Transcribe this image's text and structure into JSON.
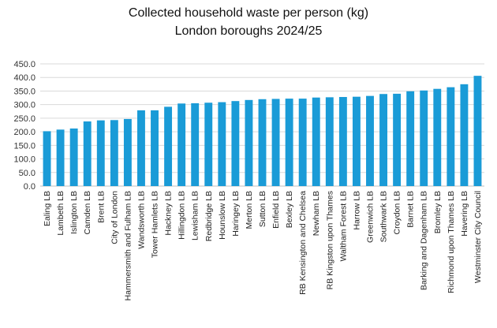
{
  "chart_data": {
    "type": "bar",
    "title": "Collected household waste per person (kg)",
    "subtitle": "London boroughs 2024/25",
    "xlabel": "",
    "ylabel": "",
    "ylim": [
      0,
      450
    ],
    "yticks": [
      "0.0",
      "50.0",
      "100.0",
      "150.0",
      "200.0",
      "250.0",
      "300.0",
      "350.0",
      "400.0",
      "450.0"
    ],
    "grid": true,
    "bar_color": "#1a9bd7",
    "categories": [
      "Ealing LB",
      "Lambeth LB",
      "Islington LB",
      "Camden LB",
      "Brent LB",
      "City of London",
      "Hammersmith and Fulham LB",
      "Wandsworth LB",
      "Tower Hamlets LB",
      "Hackney LB",
      "Hillingdon LB",
      "Lewisham LB",
      "Redbridge LB",
      "Hounslow LB",
      "Haringey LB",
      "Merton LB",
      "Sutton LB",
      "Enfield LB",
      "Bexley LB",
      "RB Kensington and Chelsea",
      "Newham LB",
      "RB Kingston upon Thames",
      "Waltham Forest LB",
      "Harrow LB",
      "Greenwich LB",
      "Southwark LB",
      "Croydon LB",
      "Barnet LB",
      "Barking and Dagenham LB",
      "Bromley LB",
      "Richmond upon Thames LB",
      "Havering LB",
      "Westminster City Council"
    ],
    "values": [
      202,
      208,
      212,
      238,
      242,
      243,
      247,
      279,
      279,
      292,
      304,
      305,
      307,
      309,
      313,
      317,
      320,
      321,
      322,
      322,
      326,
      327,
      328,
      329,
      332,
      339,
      340,
      349,
      352,
      358,
      364,
      375,
      406
    ]
  }
}
